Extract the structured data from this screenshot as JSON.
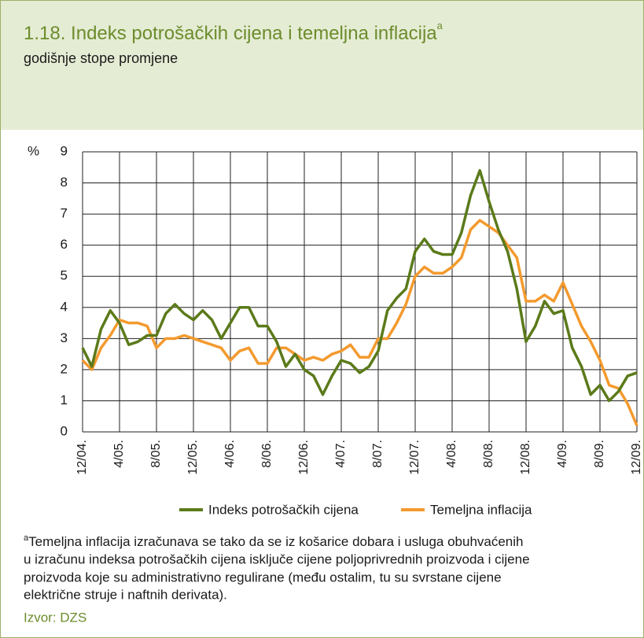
{
  "chart_data": {
    "type": "line",
    "title": "1.18. Indeks potrošačkih cijena i temeljna inflacija",
    "title_marker": "a",
    "subtitle": "godišnje stope promjene",
    "y_unit": "%",
    "categories": [
      "12/04.",
      null,
      null,
      null,
      "4/05.",
      null,
      null,
      null,
      "8/05.",
      null,
      null,
      null,
      "12/05.",
      null,
      null,
      null,
      "4/06.",
      null,
      null,
      null,
      "8/06.",
      null,
      null,
      null,
      "12/06.",
      null,
      null,
      null,
      "4/07.",
      null,
      null,
      null,
      "8/07.",
      null,
      null,
      null,
      "12/07.",
      null,
      null,
      null,
      "4/08.",
      null,
      null,
      null,
      "8/08.",
      null,
      null,
      null,
      "12/08.",
      null,
      null,
      null,
      "4/09.",
      null,
      null,
      null,
      "8/09.",
      null,
      null,
      null,
      "12/09."
    ],
    "series": [
      {
        "name": "Indeks potrošačkih cijena",
        "color": "#5b7a1a",
        "values": [
          2.7,
          2.1,
          3.3,
          3.9,
          3.5,
          2.8,
          2.9,
          3.1,
          3.1,
          3.8,
          4.1,
          3.8,
          3.6,
          3.9,
          3.6,
          3.0,
          3.5,
          4.0,
          4.0,
          3.4,
          3.4,
          2.9,
          2.1,
          2.5,
          2.0,
          1.8,
          1.2,
          1.8,
          2.3,
          2.2,
          1.9,
          2.1,
          2.6,
          3.9,
          4.3,
          4.6,
          5.8,
          6.2,
          5.8,
          5.7,
          5.7,
          6.4,
          7.6,
          8.4,
          7.4,
          6.5,
          5.8,
          4.6,
          2.9,
          3.4,
          4.2,
          3.8,
          3.9,
          2.7,
          2.1,
          1.2,
          1.5,
          1.0,
          1.3,
          1.8,
          1.9
        ]
      },
      {
        "name": "Temeljna inflacija",
        "color": "#f39a2e",
        "values": [
          2.3,
          2.0,
          2.7,
          3.1,
          3.6,
          3.5,
          3.5,
          3.4,
          2.7,
          3.0,
          3.0,
          3.1,
          3.0,
          2.9,
          2.8,
          2.7,
          2.3,
          2.6,
          2.7,
          2.2,
          2.2,
          2.7,
          2.7,
          2.5,
          2.3,
          2.4,
          2.3,
          2.5,
          2.6,
          2.8,
          2.4,
          2.4,
          3.0,
          3.0,
          3.5,
          4.1,
          5.0,
          5.3,
          5.1,
          5.1,
          5.3,
          5.6,
          6.5,
          6.8,
          6.6,
          6.4,
          6.0,
          5.6,
          4.2,
          4.2,
          4.4,
          4.2,
          4.8,
          4.1,
          3.4,
          2.9,
          2.3,
          1.5,
          1.4,
          0.9,
          0.2
        ]
      }
    ],
    "ylim": [
      0,
      9
    ],
    "yticks": [
      0,
      1,
      2,
      3,
      4,
      5,
      6,
      7,
      8,
      9
    ],
    "grid": true,
    "footnote_marker": "a",
    "footnote": [
      "Temeljna inflacija izračunava se tako da se iz košarice dobara i usluga obuhvaćenih",
      "u izračunu indeksa potrošačkih cijena isključe cijene poljoprivrednih proizvoda i cijene",
      "proizvoda koje su administrativno regulirane (među ostalim, tu su svrstane cijene",
      "električne struje i naftnih derivata)."
    ],
    "source": "Izvor: DZS"
  }
}
